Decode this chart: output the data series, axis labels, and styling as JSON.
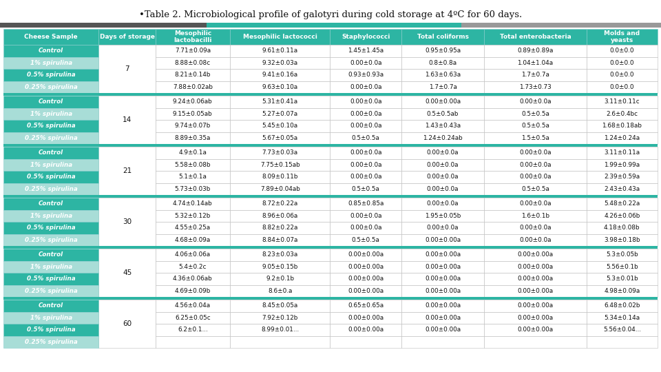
{
  "title": "•Table 2. Microbiological profile of galotyri during cold storage at 4ºC for 60 days.",
  "header_bg": "#2db5a3",
  "row_bg_dark": "#2db5a3",
  "row_bg_light": "#a8ddd7",
  "separator_bg": "#2db5a3",
  "white": "#ffffff",
  "text_dark": "#111111",
  "text_white": "#ffffff",
  "bar_left_color": "#4d4d4d",
  "bar_mid_color": "#2db5a3",
  "bar_right_color": "#9e9e9e",
  "col_header": [
    "Cheese Sample",
    "Days of storage",
    "Mesophilic\nlactobacilli",
    "Mesophilic lactococci",
    "Staphylococci",
    "Total coliforms",
    "Total enterobacteria",
    "Molds and\nyeasts"
  ],
  "col_props": [
    0.138,
    0.082,
    0.108,
    0.145,
    0.103,
    0.12,
    0.148,
    0.103
  ],
  "groups": [
    {
      "day": "7",
      "rows": [
        [
          "Control",
          "7.71±0.09a",
          "9.61±0.11a",
          "1.45±1.45a",
          "0.95±0.95a",
          "0.89±0.89a",
          "0.0±0.0"
        ],
        [
          "1% spirulina",
          "8.88±0.08c",
          "9.32±0.03a",
          "0.00±0.0a",
          "0.8±0.8a",
          "1.04±1.04a",
          "0.0±0.0"
        ],
        [
          "0.5% spirulina",
          "8.21±0.14b",
          "9.41±0.16a",
          "0.93±0.93a",
          "1.63±0.63a",
          "1.7±0.7a",
          "0.0±0.0"
        ],
        [
          "0.25% spirulina",
          "7.88±0.02ab",
          "9.63±0.10a",
          "0.00±0.0a",
          "1.7±0.7a",
          "1.73±0.73",
          "0.0±0.0"
        ]
      ]
    },
    {
      "day": "14",
      "rows": [
        [
          "Control",
          "9.24±0.06ab",
          "5.31±0.41a",
          "0.00±0.0a",
          "0.00±0.00a",
          "0.00±0.0a",
          "3.11±0.11c"
        ],
        [
          "1% spirulina",
          "9.15±0.05ab",
          "5.27±0.07a",
          "0.00±0.0a",
          "0.5±0.5ab",
          "0.5±0.5a",
          "2.6±0.4bc"
        ],
        [
          "0.5% spirulina",
          "9.74±0.07b",
          "5.45±0.10a",
          "0.00±0.0a",
          "1.43±0.43a",
          "0.5±0.5a",
          "1.68±0.18ab"
        ],
        [
          "0.25% spirulina",
          "8.89±0.35a",
          "5.67±0.05a",
          "0.5±0.5a",
          "1.24±0.24ab",
          "1.5±0.5a",
          "1.24±0.24a"
        ]
      ]
    },
    {
      "day": "21",
      "rows": [
        [
          "Control",
          "4.9±0.1a",
          "7.73±0.03a",
          "0.00±0.0a",
          "0.00±0.0a",
          "0.00±0.0a",
          "3.11±0.11a"
        ],
        [
          "1% spirulina",
          "5.58±0.08b",
          "7.75±0.15ab",
          "0.00±0.0a",
          "0.00±0.0a",
          "0.00±0.0a",
          "1.99±0.99a"
        ],
        [
          "0.5% spirulina",
          "5.1±0.1a",
          "8.09±0.11b",
          "0.00±0.0a",
          "0.00±0.0a",
          "0.00±0.0a",
          "2.39±0.59a"
        ],
        [
          "0.25% spirulina",
          "5.73±0.03b",
          "7.89±0.04ab",
          "0.5±0.5a",
          "0.00±0.0a",
          "0.5±0.5a",
          "2.43±0.43a"
        ]
      ]
    },
    {
      "day": "30",
      "rows": [
        [
          "Control",
          "4.74±0.14ab",
          "8.72±0.22a",
          "0.85±0.85a",
          "0.00±0.0a",
          "0.00±0.0a",
          "5.48±0.22a"
        ],
        [
          "1% spirulina",
          "5.32±0.12b",
          "8.96±0.06a",
          "0.00±0.0a",
          "1.95±0.05b",
          "1.6±0.1b",
          "4.26±0.06b"
        ],
        [
          "0.5% spirulina",
          "4.55±0.25a",
          "8.82±0.22a",
          "0.00±0.0a",
          "0.00±0.0a",
          "0.00±0.0a",
          "4.18±0.08b"
        ],
        [
          "0.25% spirulina",
          "4.68±0.09a",
          "8.84±0.07a",
          "0.5±0.5a",
          "0.00±0.00a",
          "0.00±0.0a",
          "3.98±0.18b"
        ]
      ]
    },
    {
      "day": "45",
      "rows": [
        [
          "Control",
          "4.06±0.06a",
          "8.23±0.03a",
          "0.00±0.00a",
          "0.00±0.00a",
          "0.00±0.00a",
          "5.3±0.05b"
        ],
        [
          "1% spirulina",
          "5.4±0.2c",
          "9.05±0.15b",
          "0.00±0.00a",
          "0.00±0.00a",
          "0.00±0.00a",
          "5.56±0.1b"
        ],
        [
          "0.5% spirulina",
          "4.36±0.06ab",
          "9.2±0.1b",
          "0.00±0.00a",
          "0.00±0.00a",
          "0.00±0.00a",
          "5.3±0.01b"
        ],
        [
          "0.25% spirulina",
          "4.69±0.09b",
          "8.6±0.a",
          "0.00±0.00a",
          "0.00±0.00a",
          "0.00±0.00a",
          "4.98±0.09a"
        ]
      ]
    },
    {
      "day": "60",
      "rows": [
        [
          "Control",
          "4.56±0.04a",
          "8.45±0.05a",
          "0.65±0.65a",
          "0.00±0.00a",
          "0.00±0.00a",
          "6.48±0.02b"
        ],
        [
          "1% spirulina",
          "6.25±0.05c",
          "7.92±0.12b",
          "0.00±0.00a",
          "0.00±0.00a",
          "0.00±0.00a",
          "5.34±0.14a"
        ],
        [
          "0.5% spirulina",
          "6.2±0.1...",
          "8.99±0.01...",
          "0.00±0.00a",
          "0.00±0.00a",
          "0.00±0.00a",
          "5.56±0.04..."
        ],
        [
          "0.25% spirulina",
          "",
          "",
          "",
          "",
          "",
          ""
        ]
      ]
    }
  ]
}
